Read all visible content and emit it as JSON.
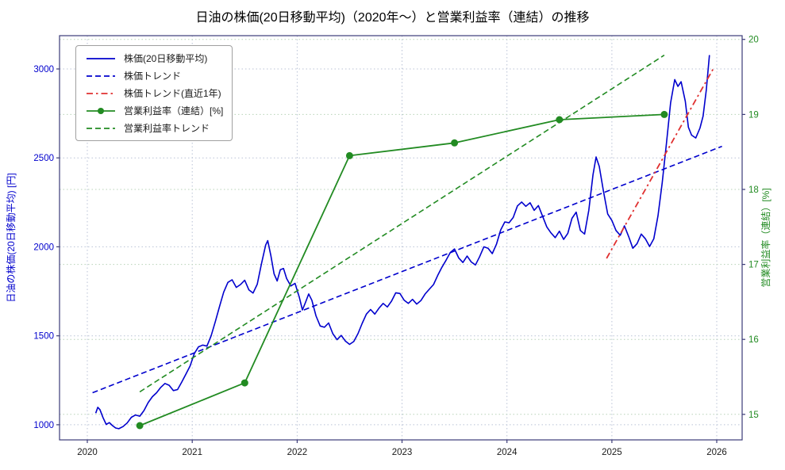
{
  "chart_data": {
    "type": "line",
    "title": "日油の株価(20日移動平均)（2020年〜）と営業利益率（連結）の推移",
    "legend_position": "upper left",
    "grid": true,
    "x_axis": {
      "label": "",
      "ticks": [
        2020,
        2021,
        2022,
        2023,
        2024,
        2025,
        2026
      ],
      "range": [
        2019.735,
        2026.242
      ]
    },
    "y_left": {
      "label": "日油の株価(20日移動平均) [円]",
      "color": "#0000cd",
      "ticks": [
        1000,
        1500,
        2000,
        2500,
        3000
      ],
      "range": [
        915,
        3187
      ]
    },
    "y_right": {
      "label": "営業利益率（連結）[%]",
      "color": "#228B22",
      "ticks": [
        15,
        16,
        17,
        18,
        19,
        20
      ],
      "range": [
        14.66,
        20.05
      ]
    },
    "series": [
      {
        "key": "stock-ma",
        "name": "株価(20日移動平均)",
        "axis": "left",
        "style": "solid",
        "color": "#0000cd",
        "width": 1.6,
        "points": [
          [
            2020.08,
            1065
          ],
          [
            2020.1,
            1098
          ],
          [
            2020.12,
            1085
          ],
          [
            2020.15,
            1040
          ],
          [
            2020.18,
            1002
          ],
          [
            2020.21,
            1012
          ],
          [
            2020.24,
            995
          ],
          [
            2020.27,
            982
          ],
          [
            2020.3,
            978
          ],
          [
            2020.34,
            990
          ],
          [
            2020.38,
            1010
          ],
          [
            2020.42,
            1042
          ],
          [
            2020.46,
            1055
          ],
          [
            2020.5,
            1048
          ],
          [
            2020.54,
            1080
          ],
          [
            2020.58,
            1125
          ],
          [
            2020.62,
            1158
          ],
          [
            2020.66,
            1180
          ],
          [
            2020.7,
            1210
          ],
          [
            2020.74,
            1232
          ],
          [
            2020.78,
            1222
          ],
          [
            2020.82,
            1192
          ],
          [
            2020.86,
            1198
          ],
          [
            2020.9,
            1240
          ],
          [
            2020.94,
            1285
          ],
          [
            2020.98,
            1330
          ],
          [
            2021.02,
            1400
          ],
          [
            2021.06,
            1438
          ],
          [
            2021.1,
            1448
          ],
          [
            2021.14,
            1442
          ],
          [
            2021.18,
            1500
          ],
          [
            2021.22,
            1580
          ],
          [
            2021.26,
            1665
          ],
          [
            2021.3,
            1745
          ],
          [
            2021.34,
            1800
          ],
          [
            2021.38,
            1815
          ],
          [
            2021.42,
            1772
          ],
          [
            2021.46,
            1788
          ],
          [
            2021.5,
            1812
          ],
          [
            2021.54,
            1758
          ],
          [
            2021.58,
            1740
          ],
          [
            2021.62,
            1790
          ],
          [
            2021.66,
            1905
          ],
          [
            2021.7,
            2010
          ],
          [
            2021.72,
            2035
          ],
          [
            2021.75,
            1950
          ],
          [
            2021.78,
            1848
          ],
          [
            2021.81,
            1808
          ],
          [
            2021.84,
            1872
          ],
          [
            2021.87,
            1878
          ],
          [
            2021.9,
            1822
          ],
          [
            2021.94,
            1780
          ],
          [
            2021.98,
            1795
          ],
          [
            2022.02,
            1718
          ],
          [
            2022.05,
            1645
          ],
          [
            2022.08,
            1688
          ],
          [
            2022.11,
            1735
          ],
          [
            2022.14,
            1700
          ],
          [
            2022.18,
            1612
          ],
          [
            2022.22,
            1555
          ],
          [
            2022.26,
            1548
          ],
          [
            2022.3,
            1572
          ],
          [
            2022.34,
            1512
          ],
          [
            2022.38,
            1478
          ],
          [
            2022.42,
            1502
          ],
          [
            2022.46,
            1470
          ],
          [
            2022.5,
            1452
          ],
          [
            2022.54,
            1468
          ],
          [
            2022.58,
            1512
          ],
          [
            2022.62,
            1570
          ],
          [
            2022.66,
            1622
          ],
          [
            2022.7,
            1648
          ],
          [
            2022.74,
            1622
          ],
          [
            2022.78,
            1655
          ],
          [
            2022.82,
            1682
          ],
          [
            2022.86,
            1662
          ],
          [
            2022.9,
            1695
          ],
          [
            2022.94,
            1742
          ],
          [
            2022.98,
            1738
          ],
          [
            2023.02,
            1700
          ],
          [
            2023.06,
            1682
          ],
          [
            2023.1,
            1705
          ],
          [
            2023.14,
            1678
          ],
          [
            2023.18,
            1698
          ],
          [
            2023.22,
            1735
          ],
          [
            2023.26,
            1762
          ],
          [
            2023.3,
            1788
          ],
          [
            2023.34,
            1840
          ],
          [
            2023.38,
            1885
          ],
          [
            2023.42,
            1925
          ],
          [
            2023.46,
            1968
          ],
          [
            2023.5,
            1988
          ],
          [
            2023.54,
            1938
          ],
          [
            2023.58,
            1912
          ],
          [
            2023.62,
            1948
          ],
          [
            2023.66,
            1915
          ],
          [
            2023.7,
            1898
          ],
          [
            2023.74,
            1945
          ],
          [
            2023.78,
            2000
          ],
          [
            2023.82,
            1992
          ],
          [
            2023.86,
            1962
          ],
          [
            2023.9,
            2015
          ],
          [
            2023.94,
            2095
          ],
          [
            2023.98,
            2140
          ],
          [
            2024.02,
            2135
          ],
          [
            2024.06,
            2165
          ],
          [
            2024.1,
            2230
          ],
          [
            2024.14,
            2252
          ],
          [
            2024.18,
            2228
          ],
          [
            2024.22,
            2248
          ],
          [
            2024.26,
            2205
          ],
          [
            2024.3,
            2232
          ],
          [
            2024.34,
            2172
          ],
          [
            2024.38,
            2112
          ],
          [
            2024.42,
            2078
          ],
          [
            2024.46,
            2052
          ],
          [
            2024.5,
            2088
          ],
          [
            2024.54,
            2042
          ],
          [
            2024.58,
            2075
          ],
          [
            2024.62,
            2160
          ],
          [
            2024.66,
            2195
          ],
          [
            2024.7,
            2092
          ],
          [
            2024.74,
            2072
          ],
          [
            2024.78,
            2205
          ],
          [
            2024.82,
            2405
          ],
          [
            2024.85,
            2505
          ],
          [
            2024.88,
            2452
          ],
          [
            2024.92,
            2312
          ],
          [
            2024.96,
            2185
          ],
          [
            2025.0,
            2148
          ],
          [
            2025.04,
            2092
          ],
          [
            2025.08,
            2065
          ],
          [
            2025.12,
            2118
          ],
          [
            2025.16,
            2058
          ],
          [
            2025.2,
            1992
          ],
          [
            2025.24,
            2018
          ],
          [
            2025.28,
            2072
          ],
          [
            2025.32,
            2045
          ],
          [
            2025.36,
            2002
          ],
          [
            2025.4,
            2045
          ],
          [
            2025.44,
            2175
          ],
          [
            2025.48,
            2360
          ],
          [
            2025.52,
            2580
          ],
          [
            2025.56,
            2810
          ],
          [
            2025.6,
            2940
          ],
          [
            2025.63,
            2902
          ],
          [
            2025.66,
            2928
          ],
          [
            2025.7,
            2818
          ],
          [
            2025.73,
            2672
          ],
          [
            2025.76,
            2628
          ],
          [
            2025.8,
            2612
          ],
          [
            2025.84,
            2668
          ],
          [
            2025.87,
            2735
          ],
          [
            2025.9,
            2880
          ],
          [
            2025.93,
            3078
          ]
        ]
      },
      {
        "key": "stock-trend",
        "name": "株価トレンド",
        "axis": "left",
        "style": "dashed",
        "color": "#0000cd",
        "width": 1.6,
        "points": [
          [
            2020.05,
            1180
          ],
          [
            2026.05,
            2565
          ]
        ]
      },
      {
        "key": "stock-trend-1y",
        "name": "株価トレンド(直近1年)",
        "axis": "left",
        "style": "dashdot",
        "color": "#e03030",
        "width": 1.8,
        "points": [
          [
            2024.95,
            1935
          ],
          [
            2025.97,
            3005
          ]
        ]
      },
      {
        "key": "op-margin",
        "name": "営業利益率（連結）[%]",
        "axis": "right",
        "style": "solid-marker",
        "color": "#228B22",
        "width": 1.8,
        "points": [
          [
            2020.5,
            14.85
          ],
          [
            2021.5,
            15.42
          ],
          [
            2022.5,
            18.45
          ],
          [
            2023.5,
            18.62
          ],
          [
            2024.5,
            18.93
          ],
          [
            2025.5,
            19.0
          ]
        ]
      },
      {
        "key": "op-margin-trend",
        "name": "営業利益率トレンド",
        "axis": "right",
        "style": "dashed",
        "color": "#228B22",
        "width": 1.6,
        "points": [
          [
            2020.5,
            15.3
          ],
          [
            2025.5,
            19.79
          ]
        ]
      }
    ]
  }
}
